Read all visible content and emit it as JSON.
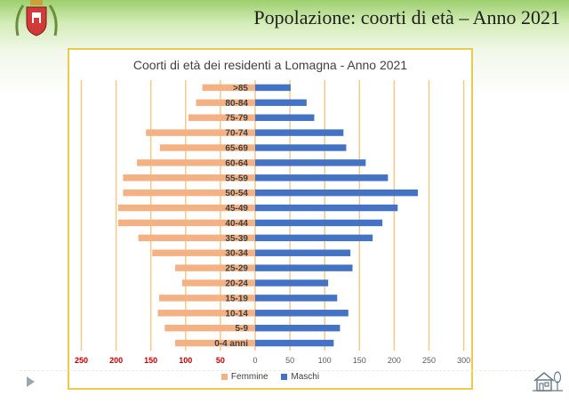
{
  "slide": {
    "title": "Popolazione: coorti di età – Anno 2021"
  },
  "icons": {
    "crest": "municipal-crest-icon",
    "nav": "play-triangle-icon",
    "home": "house-with-trees-icon"
  },
  "colors": {
    "femmine": "#f4b183",
    "maschi": "#4472c4",
    "frame_border": "#f0c94a",
    "gridline": "#f4c98a",
    "female_tick_labels": "#c00000"
  },
  "chart_data": {
    "type": "bar",
    "orientation": "horizontal",
    "layout": "population-pyramid",
    "title": "Coorti di età dei residenti a Lomagna - Anno 2021",
    "categories": [
      "0-4 anni",
      "5-9",
      "10-14",
      "15-19",
      "20-24",
      "25-29",
      "30-34",
      "35-39",
      "40-44",
      "45-49",
      "50-54",
      "55-59",
      "60-64",
      "65-69",
      "70-74",
      "75-79",
      "80-84",
      ">85"
    ],
    "series": [
      {
        "name": "Femmine",
        "side": "left",
        "values": [
          115,
          130,
          140,
          138,
          105,
          115,
          148,
          168,
          197,
          197,
          190,
          190,
          170,
          137,
          157,
          96,
          85,
          76
        ]
      },
      {
        "name": "Maschi",
        "side": "right",
        "values": [
          113,
          122,
          134,
          118,
          105,
          140,
          137,
          169,
          183,
          205,
          234,
          191,
          159,
          131,
          127,
          85,
          74,
          51
        ]
      }
    ],
    "x_ticks_left": [
      "250",
      "200",
      "150",
      "100",
      "50"
    ],
    "x_ticks_right": [
      "0",
      "50",
      "100",
      "150",
      "200",
      "250",
      "300"
    ],
    "xlim_left": [
      0,
      250
    ],
    "xlim_right": [
      0,
      300
    ],
    "grid": true,
    "legend_position": "bottom"
  }
}
